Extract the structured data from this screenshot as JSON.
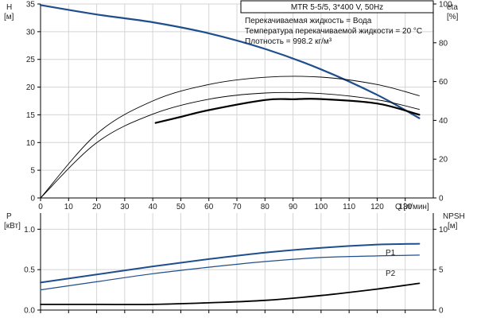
{
  "chart_data": [
    {
      "type": "line",
      "title": "MTR 5-5/5, 3*400 V, 50Hz",
      "info_lines": [
        "Перекачиваемая жидкость = Вода",
        "Температура перекачиваемой жидкости = 20 °C",
        "Плотность = 998.2 кг/м³"
      ],
      "xlabel": "Q [л/мин]",
      "x_ticks": [
        0,
        10,
        20,
        30,
        40,
        50,
        60,
        70,
        80,
        90,
        100,
        110,
        120,
        130
      ],
      "xlim": [
        0,
        140
      ],
      "ylabel_left": "H",
      "ylabel_left_unit": "[м]",
      "ylim_left": [
        0,
        35
      ],
      "y_ticks_left": [
        0,
        5,
        10,
        15,
        20,
        25,
        30,
        35
      ],
      "ylabel_right": "eta",
      "ylabel_right_unit": "[%]",
      "ylim_right": [
        0,
        100
      ],
      "y_ticks_right": [
        0,
        20,
        40,
        60,
        80,
        100
      ],
      "grid": true,
      "series": [
        {
          "axis": "left",
          "color": "#1f4e8c",
          "x": [
            0,
            20,
            40,
            60,
            80,
            100,
            120,
            135
          ],
          "y": [
            34.8,
            33.1,
            31.7,
            29.7,
            26.9,
            23.2,
            18.6,
            14.4
          ]
        },
        {
          "axis": "right",
          "color": "#000000",
          "x": [
            0,
            20,
            40,
            60,
            80,
            100,
            120,
            135
          ],
          "y": [
            0,
            28.5,
            43.2,
            50.9,
            54.1,
            53.8,
            50.6,
            45.7
          ]
        },
        {
          "axis": "right",
          "color": "#000000",
          "x": [
            0,
            20,
            40,
            60,
            80,
            100,
            120,
            135
          ],
          "y": [
            0,
            33,
            50,
            58.5,
            62.2,
            62.3,
            58.5,
            52.7
          ]
        },
        {
          "axis": "right",
          "color": "#000000",
          "x": [
            41,
            50,
            60,
            80,
            90,
            100,
            120,
            135
          ],
          "y": [
            38.7,
            41.8,
            45.3,
            50.5,
            50.9,
            51,
            48.7,
            42.9
          ]
        }
      ]
    },
    {
      "type": "line",
      "xlim": [
        0,
        140
      ],
      "ylabel_left": "P",
      "ylabel_left_unit": "[кВт]",
      "ylim_left": [
        0,
        1.2
      ],
      "y_ticks_left": [
        0,
        0.5,
        1.0
      ],
      "y_tick_labels_left": [
        "0.0",
        "0.5",
        "1.0"
      ],
      "ylabel_right": "NPSH",
      "ylabel_right_unit": "[м]",
      "ylim_right": [
        0,
        12
      ],
      "y_ticks_right": [
        0,
        5,
        10
      ],
      "grid": true,
      "series": [
        {
          "name": "P1",
          "axis": "left",
          "color": "#1f4e8c",
          "x": [
            0,
            20,
            40,
            60,
            80,
            100,
            120,
            135
          ],
          "y": [
            0.34,
            0.44,
            0.54,
            0.63,
            0.71,
            0.77,
            0.81,
            0.82
          ]
        },
        {
          "name": "P2",
          "axis": "left",
          "color": "#1f4e8c",
          "x": [
            0,
            20,
            40,
            60,
            80,
            100,
            120,
            135
          ],
          "y": [
            0.25,
            0.35,
            0.45,
            0.53,
            0.6,
            0.65,
            0.67,
            0.68
          ]
        },
        {
          "axis": "right",
          "color": "#000000",
          "x": [
            0,
            20,
            40,
            60,
            80,
            100,
            120,
            135
          ],
          "y": [
            0.7,
            0.7,
            0.7,
            0.9,
            1.2,
            1.8,
            2.6,
            3.3
          ]
        }
      ]
    }
  ]
}
